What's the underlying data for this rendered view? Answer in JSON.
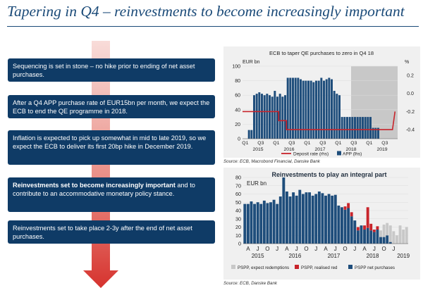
{
  "page": {
    "title": "Tapering in Q4 – reinvestments to become increasingly important"
  },
  "bullets": [
    {
      "bold": "",
      "text": "Sequencing is set in stone – no hike prior to ending of net asset purchases."
    },
    {
      "bold": "",
      "text": "After a Q4 APP purchase rate of EUR15bn per month, we expect the ECB to end the QE programme in 2018."
    },
    {
      "bold": "",
      "text": "Inflation is expected to pick up somewhat in mid to late 2019, so we expect the ECB to deliver its first 20bp hike in December 2019."
    },
    {
      "bold": "Reinvestments set to become increasingly important",
      "text": " and to contribute to an accommodative monetary policy stance."
    },
    {
      "bold": "",
      "text": "Reinvestments set to take place 2-3y after the end of net asset purchases."
    }
  ],
  "sources": {
    "chart1": "Source: ECB, Macrobond Financial, Danske Bank",
    "chart2": "Source: ECB, Danske Bank"
  },
  "colors": {
    "navy": "#0f3b66",
    "bar_blue": "#1e4d7b",
    "deposit_red": "#c8242b",
    "shade": "#c8c8c8",
    "arrow_red": "#d6332e",
    "panel_bg": "#f0f0f0"
  },
  "chart_data": [
    {
      "type": "bar",
      "title": "ECB to taper QE purchases to zero in Q4 18",
      "ylabel_left": "EUR bn",
      "ylabel_right": "%",
      "ylim_left": [
        0,
        100
      ],
      "yticks_left": [
        "0",
        "20",
        "40",
        "60",
        "80",
        "100"
      ],
      "ylim_right": [
        -0.5,
        0.3
      ],
      "yticks_right": [
        "-0.4",
        "-0.2",
        "0.0",
        "0.2"
      ],
      "quarter_labels": [
        "Q1",
        "Q3",
        "Q1",
        "Q3",
        "Q1",
        "Q3",
        "Q1",
        "Q3",
        "Q1",
        "Q3"
      ],
      "year_labels": [
        "2015",
        "2016",
        "2017",
        "2018",
        "2019"
      ],
      "forecast_shade_start_month": 42,
      "months_total": 60,
      "series": [
        {
          "name": "APP (lhs)",
          "axis": "left",
          "start_month": 2,
          "values": [
            12,
            12,
            60,
            62,
            64,
            62,
            60,
            62,
            60,
            58,
            66,
            58,
            62,
            58,
            60,
            84,
            84,
            84,
            84,
            84,
            82,
            80,
            80,
            80,
            80,
            78,
            80,
            80,
            84,
            80,
            82,
            84,
            82,
            66,
            62,
            60,
            30,
            30,
            30,
            30,
            30,
            30,
            30,
            30,
            30,
            30,
            30,
            30,
            15,
            15,
            15
          ]
        },
        {
          "name": "Deposit rate (rhs)",
          "axis": "right",
          "type": "step-line",
          "points": [
            [
              0,
              -0.2
            ],
            [
              14,
              -0.2
            ],
            [
              14,
              -0.3
            ],
            [
              17,
              -0.3
            ],
            [
              17,
              -0.4
            ],
            [
              58,
              -0.4
            ],
            [
              59,
              -0.2
            ]
          ]
        }
      ],
      "legend": [
        "Deposit rate (rhs)",
        "APP (lhs)"
      ]
    },
    {
      "type": "bar",
      "title": "Reinvestments to play an integral part",
      "ylabel": "EUR bn",
      "ylim": [
        0,
        80
      ],
      "yticks": [
        "0",
        "10",
        "20",
        "30",
        "40",
        "50",
        "60",
        "70",
        "80"
      ],
      "month_labels": [
        "A",
        "J",
        "O",
        "J",
        "A",
        "J",
        "O",
        "J",
        "A",
        "J",
        "O",
        "J",
        "A",
        "J",
        "O",
        "J"
      ],
      "year_labels": [
        "2015",
        "2016",
        "2017",
        "2018",
        "2019"
      ],
      "categories_count": 51,
      "series": [
        {
          "name": "PSPP net purchases",
          "values": [
            48,
            48,
            51,
            48,
            50,
            48,
            52,
            49,
            50,
            53,
            48,
            57,
            80,
            63,
            57,
            62,
            58,
            65,
            60,
            62,
            62,
            58,
            60,
            63,
            61,
            58,
            60,
            58,
            59,
            46,
            44,
            41,
            43,
            33,
            28,
            16,
            22,
            17,
            19,
            16,
            14,
            17,
            8,
            8,
            10,
            2,
            0,
            0,
            0,
            0,
            0
          ]
        },
        {
          "name": "PSPP, realised red",
          "values": [
            0,
            0,
            0,
            0,
            0,
            0,
            0,
            0,
            0,
            0,
            0,
            0,
            0,
            0,
            0,
            0,
            0,
            0,
            0,
            0,
            0,
            0,
            0,
            0,
            0,
            0,
            0,
            0,
            0,
            0,
            0,
            4,
            6,
            5,
            0,
            4,
            0,
            5,
            25,
            8,
            3,
            4,
            0,
            0,
            0,
            0,
            0,
            0,
            0,
            0,
            0
          ]
        },
        {
          "name": "PSPP, expect redemptions",
          "values": [
            0,
            0,
            0,
            0,
            0,
            0,
            0,
            0,
            0,
            0,
            0,
            0,
            0,
            0,
            0,
            0,
            0,
            0,
            0,
            0,
            0,
            0,
            0,
            0,
            0,
            0,
            0,
            0,
            0,
            0,
            0,
            0,
            0,
            0,
            0,
            0,
            0,
            0,
            0,
            0,
            0,
            0,
            8,
            15,
            15,
            20,
            15,
            10,
            22,
            17,
            20
          ]
        }
      ],
      "legend": [
        "PSPP, expect redemptions",
        "PSPP, realised red",
        "PSPP net purchases"
      ]
    }
  ]
}
